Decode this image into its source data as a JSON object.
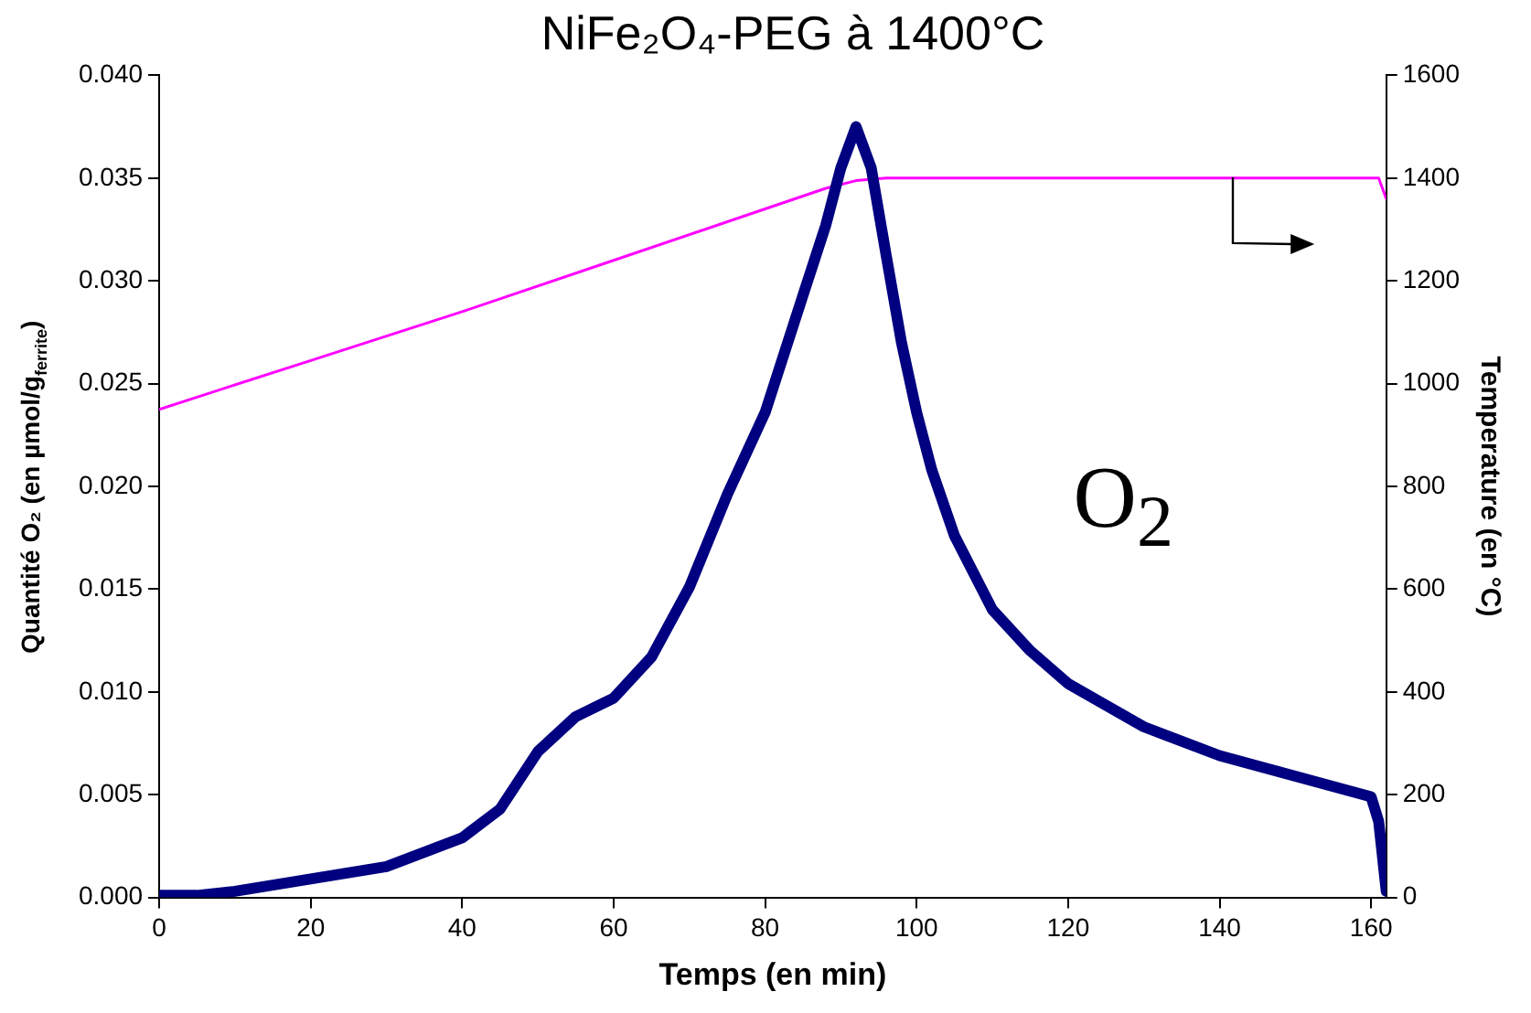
{
  "chart_data": {
    "type": "line",
    "title": "NiFe₂O₄-PEG à 1400°C",
    "xlabel": "Temps (en min)",
    "ylabel": "Quantité O₂ (en µmol/g$_{ferrite}$)",
    "y2label": "Temperature (en °C)",
    "xlim": [
      0,
      162
    ],
    "xticks": [
      0,
      20,
      40,
      60,
      80,
      100,
      120,
      140,
      160
    ],
    "ylim": [
      0,
      0.04
    ],
    "yticks": [
      {
        "value": 0,
        "label": "0.000"
      },
      {
        "value": 0.005,
        "label": "0.005"
      },
      {
        "value": 0.01,
        "label": "0.010"
      },
      {
        "value": 0.015,
        "label": "0.015"
      },
      {
        "value": 0.02,
        "label": "0.020"
      },
      {
        "value": 0.025,
        "label": "0.025"
      },
      {
        "value": 0.03,
        "label": "0.030"
      },
      {
        "value": 0.035,
        "label": "0.035"
      },
      {
        "value": 0.04,
        "label": "0.040"
      }
    ],
    "y2lim": [
      0,
      1600
    ],
    "y2ticks": [
      0,
      200,
      400,
      600,
      800,
      1000,
      1200,
      1400,
      1600
    ],
    "grid": false,
    "legend": false,
    "marker": "none",
    "series": [
      {
        "color": "#000080",
        "x": [
          0,
          5,
          10,
          20,
          30,
          40,
          45,
          50,
          55,
          60,
          65,
          70,
          75,
          80,
          85,
          88,
          90,
          92,
          94,
          96,
          98,
          100,
          102,
          105,
          110,
          115,
          120,
          130,
          140,
          150,
          160,
          161,
          162
        ],
        "values": [
          0.0001,
          0.0001,
          0.0003,
          0.0009,
          0.0015,
          0.0029,
          0.0043,
          0.0071,
          0.0088,
          0.0097,
          0.0117,
          0.0151,
          0.0196,
          0.0236,
          0.0293,
          0.0327,
          0.0355,
          0.0375,
          0.0355,
          0.0312,
          0.027,
          0.0236,
          0.0208,
          0.0176,
          0.014,
          0.012,
          0.0104,
          0.0083,
          0.0069,
          0.0059,
          0.0049,
          0.0037,
          0.0003
        ]
      },
      {
        "color": "#ff00ff",
        "axis": "y2",
        "x": [
          0,
          20,
          40,
          60,
          80,
          88,
          92,
          96,
          161,
          162
        ],
        "values": [
          950,
          1045,
          1140,
          1240,
          1340,
          1380,
          1395,
          1400,
          1400,
          1360
        ]
      }
    ],
    "annotations": [
      "O$_{2}$"
    ]
  }
}
